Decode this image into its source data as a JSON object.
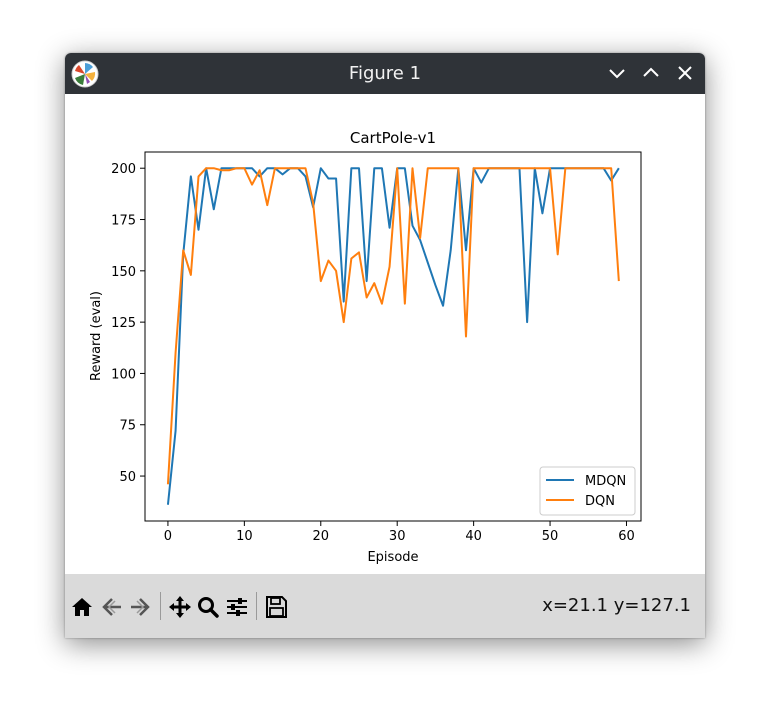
{
  "window": {
    "title": "Figure 1",
    "accent": "#2f3338"
  },
  "icons": {
    "app": "matplotlib-logo-icon",
    "minimize": "chevron-down-icon",
    "maximize": "chevron-up-icon",
    "close": "close-icon"
  },
  "toolbar": {
    "buttons": [
      "home-icon",
      "back-arrow-icon",
      "forward-arrow-icon",
      "pan-move-icon",
      "zoom-magnifier-icon",
      "configure-subplots-icon",
      "save-disk-icon"
    ],
    "coordinates": "x=21.1 y=127.1"
  },
  "chart_data": {
    "type": "line",
    "title": "CartPole-v1",
    "xlabel": "Episode",
    "ylabel": "Reward (eval)",
    "xlim": [
      -3,
      61.9
    ],
    "ylim": [
      28.1,
      207.9
    ],
    "xticks": [
      0,
      10,
      20,
      30,
      40,
      50,
      60
    ],
    "yticks": [
      50,
      75,
      100,
      125,
      150,
      175,
      200
    ],
    "grid": false,
    "legend_position": "lower right",
    "series": [
      {
        "name": "MDQN",
        "color": "#1f77b4",
        "values": [
          36,
          72,
          158,
          196,
          170,
          200,
          180,
          200,
          200,
          200,
          200,
          200,
          196,
          200,
          200,
          197,
          200,
          200,
          196,
          181,
          200,
          195,
          195,
          135,
          200,
          200,
          145,
          200,
          200,
          171,
          200,
          200,
          172,
          165,
          154,
          143,
          133,
          160,
          200,
          160,
          200,
          193,
          200,
          200,
          200,
          200,
          200,
          125,
          200,
          178,
          200,
          200,
          200,
          200,
          200,
          200,
          200,
          200,
          194,
          200
        ]
      },
      {
        "name": "DQN",
        "color": "#ff7f0e",
        "values": [
          46,
          110,
          160,
          148,
          196,
          200,
          200,
          199,
          199,
          200,
          200,
          192,
          199,
          182,
          200,
          200,
          200,
          200,
          200,
          183,
          145,
          155,
          150,
          125,
          156,
          159,
          137,
          144,
          134,
          152,
          200,
          134,
          200,
          166,
          200,
          200,
          200,
          200,
          200,
          118,
          200,
          200,
          200,
          200,
          200,
          200,
          200,
          200,
          200,
          200,
          200,
          158,
          200,
          200,
          200,
          200,
          200,
          200,
          200,
          145
        ]
      }
    ]
  }
}
